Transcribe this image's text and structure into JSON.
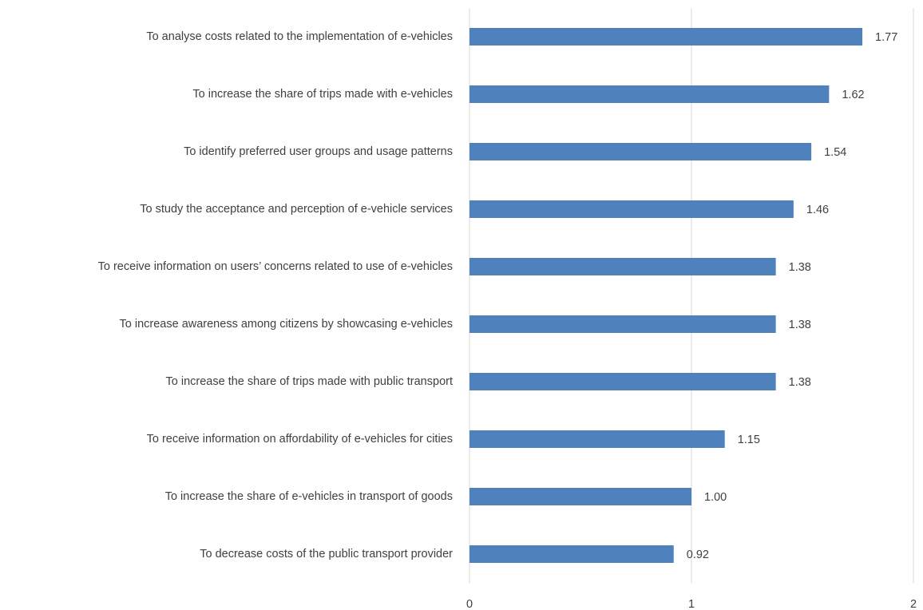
{
  "chart_data": {
    "type": "bar",
    "orientation": "horizontal",
    "categories": [
      "To analyse costs related to the implementation of e-vehicles",
      "To increase the share of trips made with e-vehicles",
      "To identify preferred user groups and usage patterns",
      "To study the acceptance and perception of e-vehicle services",
      "To receive information on users’ concerns related to use of e-vehicles",
      "To increase awareness among citizens by showcasing e-vehicles",
      "To increase the share of trips made with public transport",
      "To receive information on affordability of e-vehicles for cities",
      "To increase the share of e-vehicles in transport of goods",
      "To decrease costs of the public transport provider"
    ],
    "values": [
      1.77,
      1.62,
      1.54,
      1.46,
      1.38,
      1.38,
      1.38,
      1.15,
      1.0,
      0.92
    ],
    "value_labels": [
      "1.77",
      "1.62",
      "1.54",
      "1.46",
      "1.38",
      "1.38",
      "1.38",
      "1.15",
      "1.00",
      "0.92"
    ],
    "color": "#4f81bd",
    "xlim": [
      0,
      2
    ],
    "xticks": [
      0,
      1,
      2
    ],
    "grid": true
  }
}
